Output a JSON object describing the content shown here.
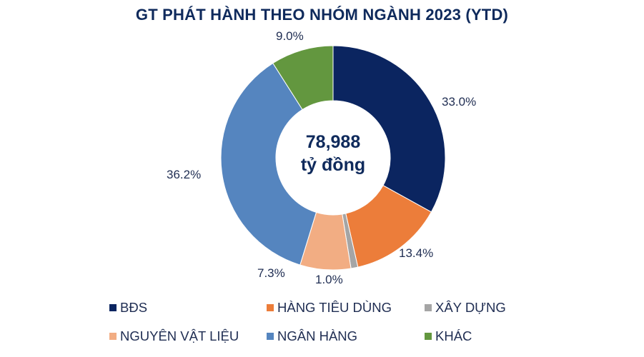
{
  "chart_data": {
    "type": "pie",
    "variant": "donut",
    "title": "GT PHÁT HÀNH THEO NHÓM NGÀNH 2023 (YTD)",
    "center_label": {
      "value": "78,988",
      "unit": "tỷ đồng"
    },
    "categories": [
      "BĐS",
      "HÀNG TIÊU DÙNG",
      "XÂY DỰNG",
      "NGUYÊN VẬT LIỆU",
      "NGÂN HÀNG",
      "KHÁC"
    ],
    "values": [
      33.0,
      13.4,
      1.0,
      7.3,
      36.2,
      9.0
    ],
    "value_labels": [
      "33.0%",
      "13.4%",
      "1.0%",
      "7.3%",
      "36.2%",
      "9.0%"
    ],
    "colors": [
      "#0b2560",
      "#ec7d3a",
      "#a5a5a5",
      "#f2ad83",
      "#5585bf",
      "#63973f"
    ],
    "legend_position": "bottom",
    "start_angle": "12 o'clock, clockwise"
  },
  "legend": [
    {
      "label": "BĐS",
      "color": "#0b2560"
    },
    {
      "label": "HÀNG TIÊU DÙNG",
      "color": "#ec7d3a"
    },
    {
      "label": "XÂY DỰNG",
      "color": "#a5a5a5"
    },
    {
      "label": "NGUYÊN VẬT LIỆU",
      "color": "#f2ad83"
    },
    {
      "label": "NGÂN HÀNG",
      "color": "#5585bf"
    },
    {
      "label": "KHÁC",
      "color": "#63973f"
    }
  ]
}
